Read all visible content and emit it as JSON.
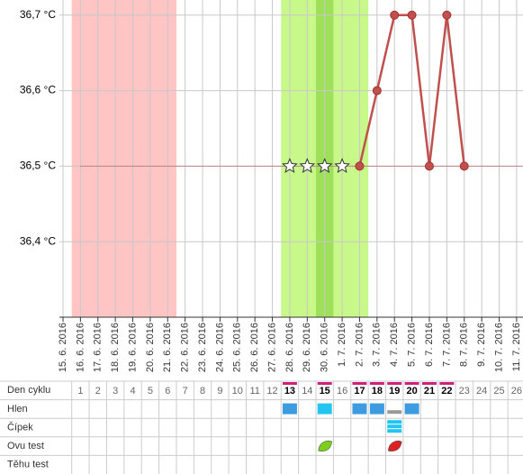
{
  "chart_data": {
    "type": "line",
    "x": [
      "15. 6. 2016",
      "16. 6. 2016",
      "17. 6. 2016",
      "18. 6. 2016",
      "19. 6. 2016",
      "20. 6. 2016",
      "21. 6. 2016",
      "22. 6. 2016",
      "23. 6. 2016",
      "24. 6. 2016",
      "25. 6. 2016",
      "26. 6. 2016",
      "27. 6. 2016",
      "28. 6. 2016",
      "29. 6. 2016",
      "30. 6. 2016",
      "1. 7. 2016",
      "2. 7. 2016",
      "3. 7. 2016",
      "4. 7. 2016",
      "5. 7. 2016",
      "6. 7. 2016",
      "7. 7. 2016",
      "8. 7. 2016",
      "9. 7. 2016",
      "10. 7. 2016",
      "11. 7. 2016"
    ],
    "series": [
      {
        "color": "#c0504d",
        "marker": "circle",
        "values": [
          null,
          null,
          null,
          null,
          null,
          null,
          null,
          null,
          null,
          null,
          null,
          null,
          null,
          null,
          null,
          null,
          null,
          36.5,
          36.6,
          36.7,
          36.7,
          36.5,
          36.7,
          36.5,
          null,
          null,
          null
        ]
      },
      {
        "color": "#ffffff",
        "marker": "star",
        "values": [
          null,
          null,
          null,
          null,
          null,
          null,
          null,
          null,
          null,
          null,
          null,
          null,
          null,
          36.5,
          36.5,
          36.5,
          36.5,
          null,
          null,
          null,
          null,
          null,
          null,
          null,
          null,
          null,
          null
        ]
      }
    ],
    "coverline": 36.5,
    "ylim": [
      36.3,
      36.72
    ],
    "yticks": [
      {
        "value": 36.4,
        "label": "36,4 °C"
      },
      {
        "value": 36.5,
        "label": "36,5 °C"
      },
      {
        "value": 36.6,
        "label": "36,6 °C"
      },
      {
        "value": 36.7,
        "label": "36,7 °C"
      }
    ],
    "grid": true,
    "bands": [
      {
        "from": 1,
        "to": 6,
        "color": "#ffc4c4"
      },
      {
        "from": 13,
        "to": 17,
        "color": "#c8f78a"
      },
      {
        "from": 15,
        "to": 15,
        "color": "#9ee05a"
      }
    ]
  },
  "table": {
    "rows": [
      "Den cyklu",
      "Hlen",
      "Čípek",
      "Ovu test",
      "Těhu test"
    ],
    "days": [
      1,
      2,
      3,
      4,
      5,
      6,
      7,
      8,
      9,
      10,
      11,
      12,
      13,
      14,
      15,
      16,
      17,
      18,
      19,
      20,
      21,
      22,
      23,
      24,
      25,
      26
    ],
    "highlighted": [
      13,
      15,
      17,
      18,
      19,
      20,
      21,
      22
    ],
    "hlen": [
      {
        "day": 13,
        "color": "#3d9be0"
      },
      {
        "day": 15,
        "color": "#22c5ef"
      },
      {
        "day": 17,
        "color": "#3d9be0"
      },
      {
        "day": 18,
        "color": "#3d9be0"
      },
      {
        "day": 20,
        "color": "#3d9be0"
      }
    ],
    "cipek": [
      19
    ],
    "ovu": [
      {
        "day": 15,
        "color": "#7ccf1a"
      },
      {
        "day": 19,
        "color": "#e02020"
      }
    ]
  }
}
